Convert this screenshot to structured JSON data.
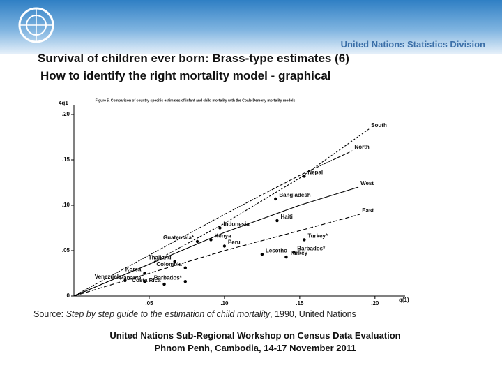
{
  "header": {
    "organization": "United Nations Statistics Division"
  },
  "slide": {
    "title_line1": "Survival of children ever born: Brass-type estimates (6)",
    "title_line2": "How to identify the right mortality model - graphical"
  },
  "chart_data": {
    "type": "line",
    "title": "Figure 5. Comparison of country-specific estimates of infant and child mortality with the Coale-Demeny mortality models",
    "x_label": "q(1)",
    "y_label": "4q1",
    "xlim": [
      0,
      0.22
    ],
    "ylim": [
      0,
      0.21
    ],
    "xticks": [
      {
        "value": 0.05,
        "label": ".05"
      },
      {
        "value": 0.1,
        "label": ".10"
      },
      {
        "value": 0.15,
        "label": ".15"
      },
      {
        "value": 0.2,
        "label": ".20"
      }
    ],
    "yticks": [
      0,
      {
        "value": 0.05,
        "label": ".05"
      },
      {
        "value": 0.1,
        "label": ".10"
      },
      {
        "value": 0.15,
        "label": ".15"
      },
      {
        "value": 0.2,
        "label": ".20"
      }
    ],
    "series": [
      {
        "name": "South",
        "color": "#000000",
        "x": [
          0,
          0.05,
          0.1,
          0.15,
          0.196
        ],
        "values": [
          0,
          0.035,
          0.08,
          0.13,
          0.184
        ]
      },
      {
        "name": "North",
        "color": "#000000",
        "x": [
          0,
          0.05,
          0.1,
          0.15,
          0.185
        ],
        "values": [
          0,
          0.045,
          0.09,
          0.133,
          0.16
        ]
      },
      {
        "name": "West",
        "color": "#000000",
        "x": [
          0,
          0.05,
          0.1,
          0.15,
          0.189
        ],
        "values": [
          0,
          0.035,
          0.07,
          0.1,
          0.12
        ]
      },
      {
        "name": "East",
        "color": "#000000",
        "x": [
          0,
          0.05,
          0.1,
          0.15,
          0.19
        ],
        "values": [
          0,
          0.025,
          0.05,
          0.072,
          0.09
        ]
      }
    ],
    "points": {
      "color": "#000000",
      "labels": [
        "Nepal",
        "Bangladesh",
        "Haiti",
        "Indonesia",
        "Kenya",
        "Peru",
        "Guatemala*",
        "Lesotho",
        "Turkey*",
        "Barbados*",
        "Turkey",
        "Colombia",
        "Thailand",
        "Korea",
        "Venezuela",
        "Panama",
        "Barbados*",
        "Costa Rica"
      ],
      "x": [
        0.153,
        0.134,
        0.135,
        0.097,
        0.091,
        0.1,
        0.082,
        0.125,
        0.153,
        0.146,
        0.141,
        0.074,
        0.067,
        0.047,
        0.034,
        0.047,
        0.074,
        0.06
      ],
      "y": [
        0.132,
        0.107,
        0.083,
        0.075,
        0.062,
        0.055,
        0.06,
        0.046,
        0.062,
        0.048,
        0.043,
        0.031,
        0.038,
        0.025,
        0.017,
        0.016,
        0.016,
        0.013
      ]
    }
  },
  "source": {
    "prefix": "Source: ",
    "title": "Step by step guide to the estimation of child mortality",
    "suffix": ", 1990, United Nations"
  },
  "footer": {
    "line1": "United Nations Sub-Regional Workshop on Census Data Evaluation",
    "line2": "Phnom Penh, Cambodia, 14-17 November 2011"
  }
}
